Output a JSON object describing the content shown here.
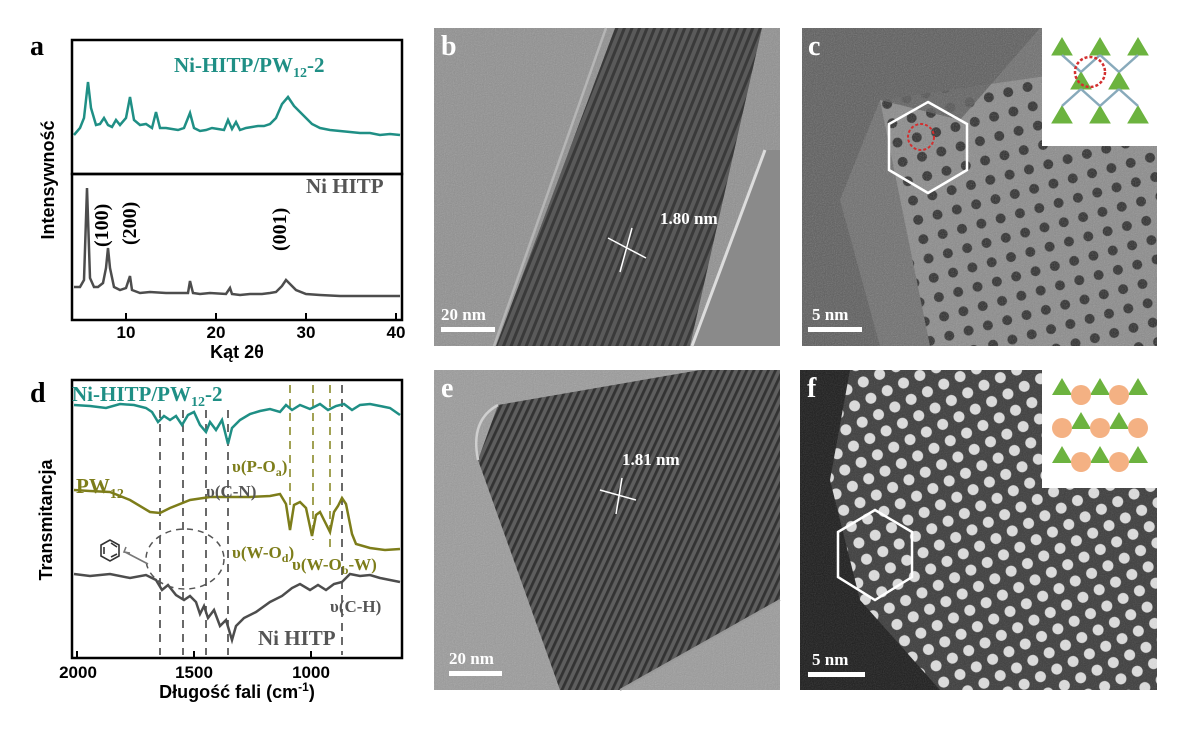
{
  "panels": {
    "a": {
      "letter": "a",
      "series": [
        {
          "name": "Ni-HITP/PW",
          "sub": "12",
          "suffix": "-2",
          "color": "#1f8f85"
        },
        {
          "name": "Ni HITP",
          "color": "#4d4d4d"
        }
      ],
      "peaks": [
        "(100)",
        "(200)",
        "(001)"
      ],
      "ylabel": "Intensywność",
      "xlabel": "Kąt 2θ",
      "xticks": [
        "10",
        "20",
        "30",
        "40"
      ]
    },
    "d": {
      "letter": "d",
      "series": [
        {
          "name": "Ni-HITP/PW",
          "sub": "12",
          "suffix": "-2",
          "color": "#1f8f85"
        },
        {
          "name": "PW",
          "sub": "12",
          "color": "#7d7d1a"
        },
        {
          "name": "Ni HITP",
          "color": "#4d4d4d"
        }
      ],
      "modes": {
        "po": {
          "pre": "υ(P-O",
          "sub": "a",
          "post": ")"
        },
        "cn": {
          "pre": "υ(C-N)"
        },
        "wod": {
          "pre": "υ(W-O",
          "sub": "d",
          "post": ")"
        },
        "wob": {
          "pre": "υ(W-O",
          "sub": "b",
          "post": "-W)"
        },
        "ch": {
          "pre": "υ(C-H)"
        }
      },
      "ylabel": "Transmitancja",
      "xlabel": "Długość fali (cm",
      "xlabel_sup": "-1",
      "xlabel_end": ")",
      "xticks": [
        "2000",
        "1500",
        "1000"
      ]
    },
    "b": {
      "letter": "b",
      "scale": "20 nm",
      "spacing": "1.80 nm"
    },
    "c": {
      "letter": "c",
      "scale": "5 nm"
    },
    "e": {
      "letter": "e",
      "scale": "20 nm",
      "spacing": "1.81 nm"
    },
    "f": {
      "letter": "f",
      "scale": "5 nm"
    }
  },
  "colors": {
    "teal": "#1f8f85",
    "olive": "#7d7d1a",
    "gray": "#4d4d4d",
    "green": "#6cb33f",
    "orange": "#f4b183"
  }
}
